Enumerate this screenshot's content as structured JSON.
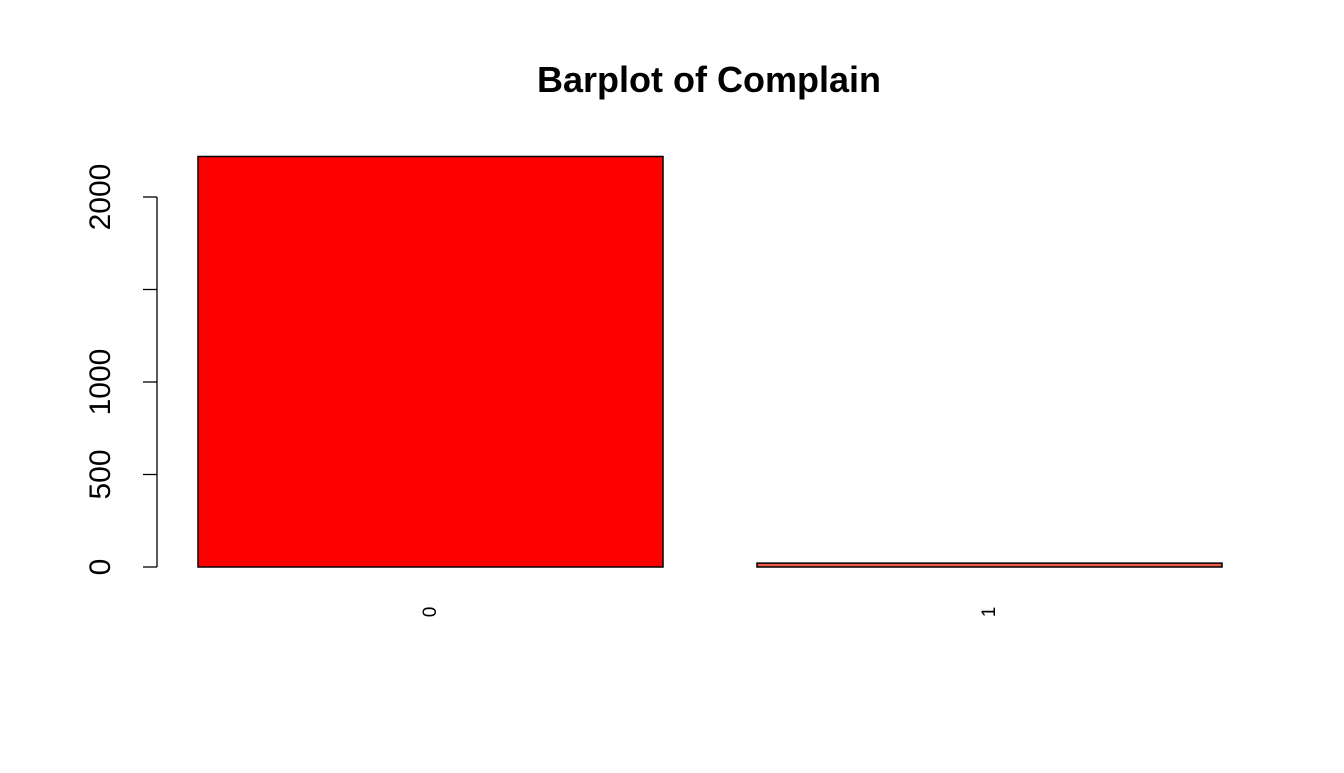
{
  "chart_data": {
    "type": "bar",
    "title": "Barplot of Complain",
    "xlabel": "",
    "ylabel": "",
    "categories": [
      "0",
      "1"
    ],
    "values": [
      2219,
      21
    ],
    "y_ticks": [
      0,
      500,
      1000,
      1500,
      2000
    ],
    "y_tick_labels": [
      "0",
      "500",
      "1000",
      "",
      "2000"
    ],
    "ylim": [
      0,
      2219
    ],
    "grid": false,
    "legend": "none",
    "colors": {
      "bars": [
        "#ff0000",
        "#f05a45"
      ],
      "border": "#000000",
      "background": "#ffffff"
    }
  }
}
